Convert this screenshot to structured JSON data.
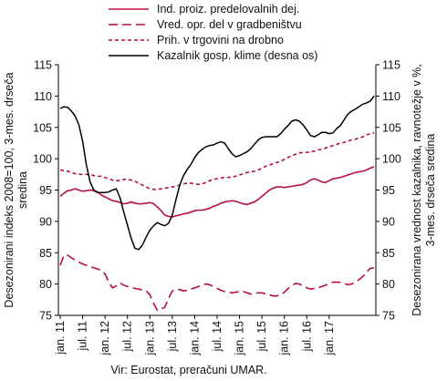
{
  "chart_data": {
    "type": "line",
    "title": "",
    "ylabel_left": "Desezonirani indeks 2008=100, 3-mes. drseča sredina",
    "ylabel_left_lines": [
      "Desezonirani indeks 2008=100, 3-mes. drseča",
      "sredina"
    ],
    "ylabel_right": "Desezonirana vrednost kazalnika, ravnotežje v %, 3-mes. drseča sredina",
    "ylabel_right_lines": [
      "Desezonirana vrednost kazalnika, ravnotežje v %,",
      "3-mes. drseča sredina"
    ],
    "source": "Vir: Eurostat, preračuni UMAR.",
    "ylim_left": [
      75,
      115
    ],
    "ylim_right": [
      75,
      115
    ],
    "yticks": [
      "75",
      "80",
      "85",
      "90",
      "95",
      "100",
      "105",
      "110",
      "115"
    ],
    "x_start": "2011-01",
    "x_end": "2017-07",
    "x_tick_labels": [
      "jan. 11",
      "jul. 11",
      "jan. 12",
      "jul. 12",
      "jan. 13",
      "jul. 13",
      "jan. 14",
      "jul. 14",
      "jan. 15",
      "jul. 15",
      "jan. 16",
      "jul. 16",
      "jan. 17"
    ],
    "legend_placement": "top-left",
    "grid": false,
    "series": [
      {
        "name": "Ind. proiz. predelovalnih dej.",
        "axis": "left",
        "color": "#b5103c",
        "dash": "solid",
        "values": [
          94.0,
          94.5,
          94.9,
          95.0,
          95.2,
          95.0,
          94.8,
          94.9,
          95.0,
          94.9,
          94.7,
          94.2,
          93.9,
          93.6,
          93.3,
          93.2,
          93.0,
          92.8,
          92.9,
          93.1,
          92.9,
          92.8,
          92.8,
          92.9,
          93.0,
          92.8,
          92.3,
          91.7,
          91.0,
          90.8,
          90.7,
          90.9,
          91.0,
          91.2,
          91.3,
          91.5,
          91.7,
          91.8,
          91.8,
          91.9,
          92.1,
          92.4,
          92.6,
          92.9,
          93.1,
          93.2,
          93.3,
          93.2,
          93.0,
          92.8,
          92.7,
          92.9,
          93.1,
          93.5,
          94.0,
          94.5,
          95.0,
          95.3,
          95.5,
          95.5,
          95.4,
          95.5,
          95.6,
          95.7,
          95.8,
          95.9,
          96.2,
          96.6,
          96.8,
          96.6,
          96.3,
          96.2,
          96.5,
          96.8,
          96.9,
          97.0,
          97.2,
          97.4,
          97.6,
          97.8,
          97.9,
          98.0,
          98.2,
          98.5,
          98.7
        ]
      },
      {
        "name": "Vred. opr. del v gradbeništvu",
        "axis": "left",
        "color": "#b5103c",
        "dash": "long-dash",
        "values": [
          83.0,
          84.6,
          84.6,
          84.2,
          83.8,
          83.5,
          83.2,
          83.0,
          82.8,
          82.6,
          82.4,
          82.2,
          81.6,
          80.3,
          79.4,
          79.7,
          80.2,
          79.8,
          79.6,
          79.5,
          79.3,
          79.2,
          79.0,
          78.9,
          78.3,
          76.9,
          75.8,
          76.0,
          76.3,
          77.7,
          78.9,
          79.2,
          79.1,
          78.9,
          79.0,
          79.2,
          79.4,
          79.6,
          79.9,
          80.0,
          79.9,
          79.6,
          79.3,
          79.0,
          78.8,
          78.7,
          78.6,
          78.7,
          78.8,
          78.8,
          78.6,
          78.4,
          78.5,
          78.6,
          78.6,
          78.4,
          78.3,
          78.1,
          78.1,
          78.3,
          78.7,
          79.3,
          79.8,
          80.1,
          80.0,
          79.7,
          79.4,
          79.2,
          79.3,
          79.4,
          79.6,
          79.8,
          80.1,
          80.3,
          80.3,
          80.3,
          80.1,
          79.9,
          80.0,
          80.3,
          80.7,
          81.2,
          81.9,
          82.5,
          82.6
        ]
      },
      {
        "name": "Prih. v trgovini na drobno",
        "axis": "left",
        "color": "#b5103c",
        "dash": "short-dash",
        "values": [
          98.2,
          98.1,
          98.0,
          97.8,
          97.6,
          97.5,
          97.5,
          97.5,
          97.5,
          97.3,
          97.2,
          97.2,
          97.0,
          96.8,
          96.6,
          96.5,
          96.5,
          96.7,
          96.7,
          96.6,
          96.4,
          96.1,
          95.8,
          95.5,
          95.2,
          95.1,
          95.1,
          95.2,
          95.3,
          95.4,
          95.5,
          95.6,
          95.8,
          96.0,
          96.1,
          96.1,
          96.0,
          95.9,
          96.0,
          96.2,
          96.5,
          96.7,
          96.8,
          96.9,
          97.0,
          97.0,
          97.1,
          97.2,
          97.4,
          97.6,
          97.8,
          97.9,
          98.0,
          98.2,
          98.5,
          98.8,
          99.0,
          99.2,
          99.4,
          99.6,
          99.9,
          100.2,
          100.5,
          100.7,
          100.9,
          101.0,
          101.0,
          101.1,
          101.2,
          101.4,
          101.5,
          101.7,
          101.9,
          102.1,
          102.3,
          102.5,
          102.6,
          102.8,
          103.0,
          103.1,
          103.3,
          103.5,
          103.8,
          104.0,
          104.1
        ]
      },
      {
        "name": "Kazalnik gosp. klime (desna os)",
        "axis": "right",
        "color": "#000000",
        "dash": "solid",
        "values": [
          108.0,
          108.3,
          108.2,
          107.6,
          106.8,
          105.4,
          102.8,
          99.0,
          96.3,
          95.0,
          94.6,
          94.6,
          94.6,
          94.7,
          95.0,
          95.2,
          93.8,
          91.5,
          89.4,
          87.3,
          85.7,
          85.5,
          86.2,
          87.5,
          88.6,
          89.3,
          89.8,
          89.5,
          89.3,
          89.7,
          91.0,
          93.5,
          95.8,
          97.3,
          98.3,
          99.1,
          100.2,
          101.0,
          101.5,
          101.9,
          102.1,
          102.2,
          102.5,
          102.7,
          102.5,
          101.6,
          100.8,
          100.3,
          100.5,
          100.8,
          101.1,
          101.6,
          102.3,
          103.0,
          103.4,
          103.5,
          103.5,
          103.5,
          103.5,
          104.0,
          104.7,
          105.3,
          106.0,
          106.2,
          106.0,
          105.4,
          104.6,
          103.7,
          103.5,
          103.8,
          104.2,
          104.2,
          104.0,
          104.1,
          104.8,
          105.3,
          106.2,
          107.1,
          107.6,
          107.9,
          108.3,
          108.7,
          108.9,
          109.2,
          110.0
        ]
      }
    ]
  }
}
